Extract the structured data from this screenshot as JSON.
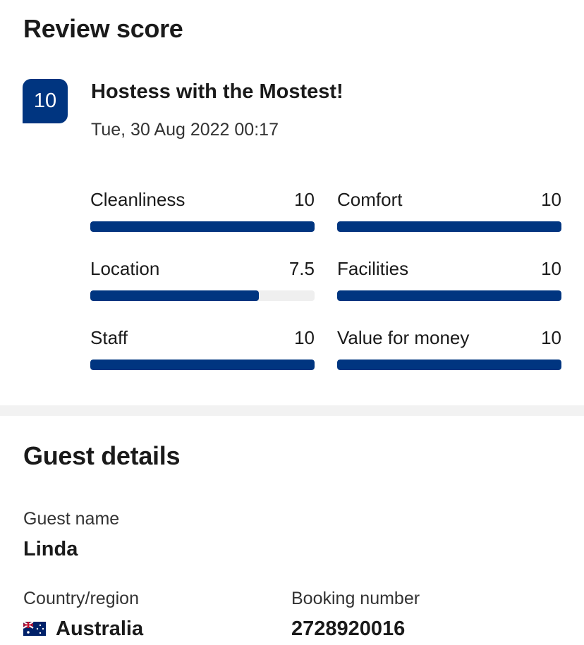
{
  "colors": {
    "brand_blue": "#003580",
    "track": "#efefef"
  },
  "review": {
    "heading": "Review score",
    "score": "10",
    "title": "Hostess with the Mostest!",
    "date": "Tue, 30 Aug 2022 00:17",
    "max_score": 10,
    "categories": [
      {
        "label": "Cleanliness",
        "value": "10",
        "score": 10
      },
      {
        "label": "Comfort",
        "value": "10",
        "score": 10
      },
      {
        "label": "Location",
        "value": "7.5",
        "score": 7.5
      },
      {
        "label": "Facilities",
        "value": "10",
        "score": 10
      },
      {
        "label": "Staff",
        "value": "10",
        "score": 10
      },
      {
        "label": "Value for money",
        "value": "10",
        "score": 10
      }
    ]
  },
  "guest": {
    "heading": "Guest details",
    "name_label": "Guest name",
    "name": "Linda",
    "country_label": "Country/region",
    "country": "Australia",
    "country_flag_icon": "australia-flag-icon",
    "booking_label": "Booking number",
    "booking_number": "2728920016"
  }
}
